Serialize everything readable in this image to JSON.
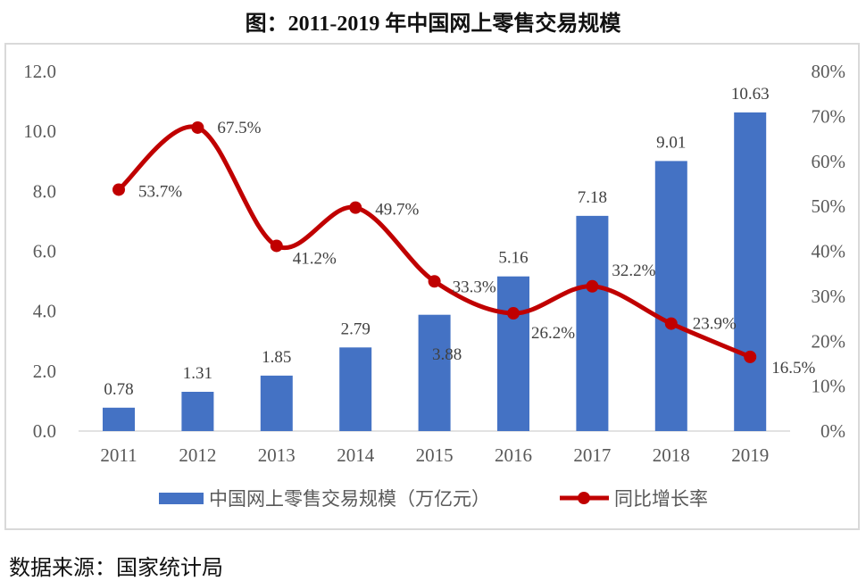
{
  "title": "图：2011-2019 年中国网上零售交易规模",
  "source": "数据来源：国家统计局",
  "chart_data": {
    "type": "bar+line",
    "categories": [
      "2011",
      "2012",
      "2013",
      "2014",
      "2015",
      "2016",
      "2017",
      "2018",
      "2019"
    ],
    "series": [
      {
        "name": "中国网上零售交易规模（万亿元）",
        "type": "bar",
        "axis": "left",
        "color": "#4472c4",
        "values": [
          0.78,
          1.31,
          1.85,
          2.79,
          3.88,
          5.16,
          7.18,
          9.01,
          10.63
        ],
        "labels": [
          "0.78",
          "1.31",
          "1.85",
          "2.79",
          "3.88",
          "5.16",
          "7.18",
          "9.01",
          "10.63"
        ]
      },
      {
        "name": "同比增长率",
        "type": "line",
        "axis": "right",
        "color": "#c00000",
        "values": [
          53.7,
          67.5,
          41.2,
          49.7,
          33.3,
          26.2,
          32.2,
          23.9,
          16.5
        ],
        "labels": [
          "53.7%",
          "67.5%",
          "41.2%",
          "49.7%",
          "33.3%",
          "26.2%",
          "32.2%",
          "23.9%",
          "16.5%"
        ]
      }
    ],
    "y_left": {
      "ylim": [
        0,
        12
      ],
      "ticks": [
        "0.0",
        "2.0",
        "4.0",
        "6.0",
        "8.0",
        "10.0",
        "12.0"
      ]
    },
    "y_right": {
      "ylim": [
        0,
        80
      ],
      "ticks": [
        "0%",
        "10%",
        "20%",
        "30%",
        "40%",
        "50%",
        "60%",
        "70%",
        "80%"
      ]
    },
    "grid": false,
    "legend": "bottom"
  }
}
